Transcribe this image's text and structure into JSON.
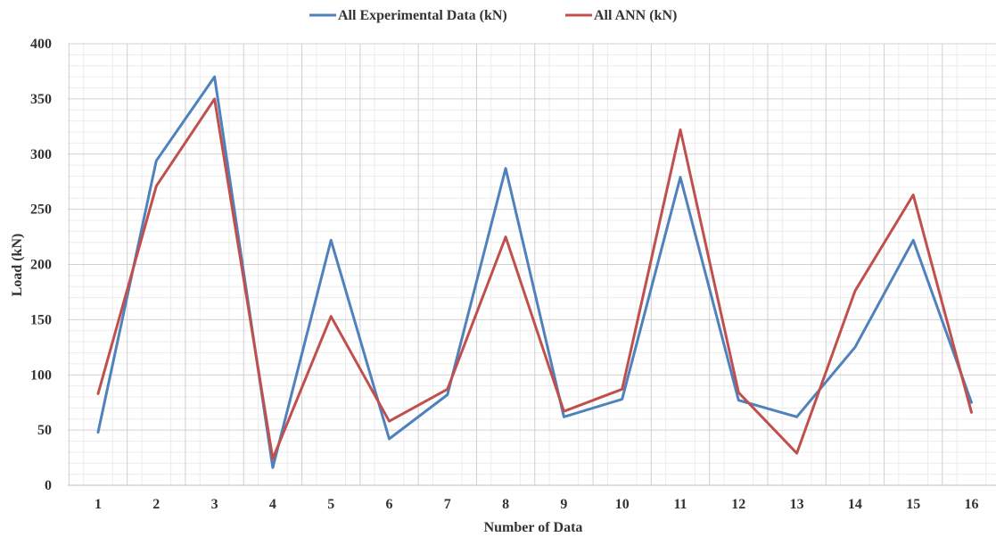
{
  "chart_data": {
    "type": "line",
    "title": "",
    "xlabel": "Number of Data",
    "ylabel": "Load (kN)",
    "categories": [
      "1",
      "2",
      "3",
      "4",
      "5",
      "6",
      "7",
      "8",
      "9",
      "10",
      "11",
      "12",
      "13",
      "14",
      "15",
      "16"
    ],
    "ylim": [
      0,
      400
    ],
    "yticks": [
      0,
      50,
      100,
      150,
      200,
      250,
      300,
      350,
      400
    ],
    "grid": true,
    "legend_position": "top",
    "series": [
      {
        "name": "All Experimental Data (kN)",
        "color": "#4F81BD",
        "values": [
          48,
          294,
          370,
          16,
          222,
          42,
          82,
          287,
          62,
          78,
          279,
          77,
          62,
          125,
          222,
          75
        ]
      },
      {
        "name": "All ANN (kN)",
        "color": "#C0504D",
        "values": [
          83,
          271,
          350,
          24,
          153,
          58,
          87,
          225,
          67,
          87,
          322,
          84,
          29,
          176,
          263,
          66
        ]
      }
    ]
  }
}
